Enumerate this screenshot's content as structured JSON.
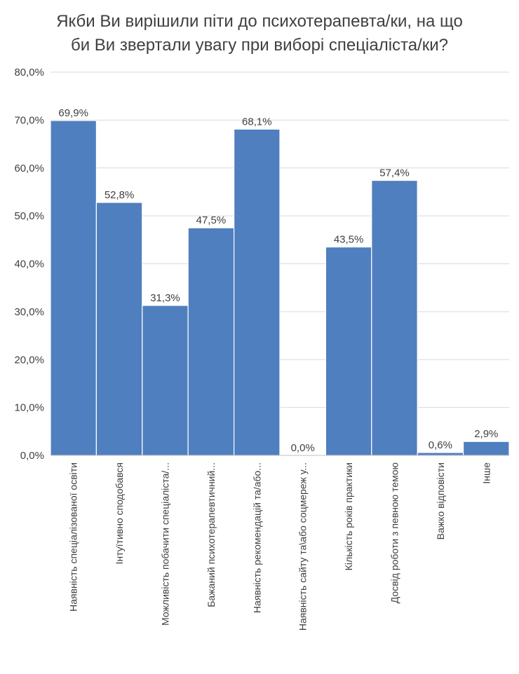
{
  "chart_data": {
    "type": "bar",
    "title_lines": [
      "Якби Ви вирішили піти до психотерапевта/ки, на що",
      "би Ви звертали увагу при виборі спеціаліста/ки?"
    ],
    "categories": [
      "Наявність спеціалізованої освіти",
      "Інтуїтивно сподобався",
      "Можливість побачити спеціаліста/...",
      "Бажаний психотерапевтичний...",
      "Наявність рекомендацій та/або...",
      "Наявність сайту та\\або соцмереж у...",
      "Кількість років практики",
      "Досвід роботи з певною темою",
      "Важко відповісти",
      "Інше"
    ],
    "values": [
      69.9,
      52.8,
      31.3,
      47.5,
      68.1,
      0.0,
      43.5,
      57.4,
      0.6,
      2.9
    ],
    "value_labels": [
      "69,9%",
      "52,8%",
      "31,3%",
      "47,5%",
      "68,1%",
      "0,0%",
      "43,5%",
      "57,4%",
      "0,6%",
      "2,9%"
    ],
    "y_ticks": [
      "0,0%",
      "10,0%",
      "20,0%",
      "30,0%",
      "40,0%",
      "50,0%",
      "60,0%",
      "70,0%",
      "80,0%"
    ],
    "ylim": [
      0,
      80
    ],
    "grid": true,
    "legend": "none",
    "bar_color": "#4f7fbf",
    "bar_edge_color": "#ffffff",
    "grid_color": "#d9d9d9"
  }
}
